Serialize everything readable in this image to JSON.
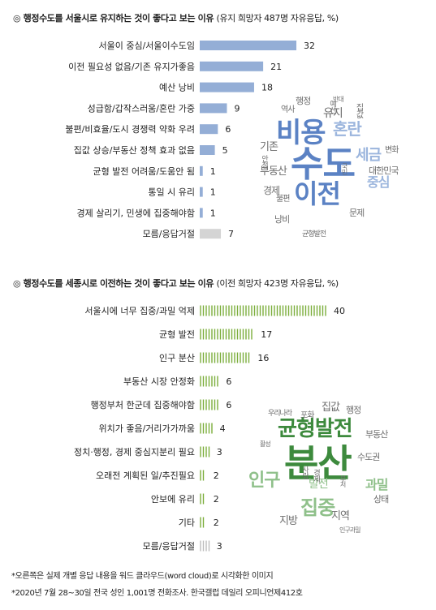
{
  "chart_data": [
    {
      "type": "bar",
      "title": "◎ 행정수도를 서울시로 유지하는 것이 좋다고 보는 이유",
      "subtitle": "(유지 희망자 487명 자유응답, %)",
      "categories": [
        "서울이 중심/서울이수도임",
        "이전 필요성 없음/기존 유지가좋음",
        "예산 낭비",
        "성급함/갑작스러움/혼란 가중",
        "불편/비효율/도시 경쟁력 약화 우려",
        "집값 상승/부동산 정책 효과 없음",
        "균형 발전 어려움/도움안 됨",
        "통일 시 유리",
        "경제 살리기, 민생에 집중해야함",
        "모름/응답거절"
      ],
      "values": [
        32,
        21,
        18,
        9,
        6,
        5,
        1,
        1,
        1,
        7
      ],
      "highlight_last": true,
      "colors": {
        "bar": "#94aed6",
        "last": "#d4d4d4"
      },
      "xlim": [
        0,
        40
      ]
    },
    {
      "type": "bar",
      "title": "◎ 행정수도를 세종시로 이전하는 것이 좋다고 보는 이유",
      "subtitle": "(이전 희망자 423명 자유응답, %)",
      "categories": [
        "서울시에 너무 집중/과밀 억제",
        "균형 발전",
        "인구 분산",
        "부동산 시장 안정화",
        "행정부처 한군데 집중해야함",
        "위치가 좋음/거리가가까움",
        "정치·행정, 경제 중심지분리 필요",
        "오래전 계획된 일/추진필요",
        "안보에 유리",
        "기타",
        "모름/응답거절"
      ],
      "values": [
        40,
        17,
        16,
        6,
        6,
        4,
        3,
        2,
        2,
        2,
        3
      ],
      "highlight_last": true,
      "colors": {
        "bar": "#7cae3c",
        "last": "#bcbcbc"
      },
      "xlim": [
        0,
        40
      ]
    }
  ],
  "wordcloud1": {
    "color_main": "#5b82c4",
    "color_light": "#9bb5dd",
    "color_gray": "#6e6e6e",
    "words": [
      {
        "text": "비용",
        "size": 34,
        "tone": "main"
      },
      {
        "text": "수도",
        "size": 44,
        "tone": "main"
      },
      {
        "text": "이전",
        "size": 32,
        "tone": "main"
      },
      {
        "text": "혼란",
        "size": 20,
        "tone": "light"
      },
      {
        "text": "세금",
        "size": 18,
        "tone": "light"
      },
      {
        "text": "중심",
        "size": 16,
        "tone": "light"
      },
      {
        "text": "유지",
        "size": 14,
        "tone": "gray"
      },
      {
        "text": "행정",
        "size": 11,
        "tone": "gray"
      },
      {
        "text": "역사",
        "size": 10,
        "tone": "gray"
      },
      {
        "text": "집값",
        "size": 10,
        "tone": "gray"
      },
      {
        "text": "반대",
        "size": 8,
        "tone": "gray"
      },
      {
        "text": "기존",
        "size": 13,
        "tone": "gray"
      },
      {
        "text": "부동산",
        "size": 13,
        "tone": "gray"
      },
      {
        "text": "경제",
        "size": 12,
        "tone": "gray"
      },
      {
        "text": "안정",
        "size": 9,
        "tone": "gray"
      },
      {
        "text": "불편",
        "size": 10,
        "tone": "gray"
      },
      {
        "text": "낭비",
        "size": 11,
        "tone": "gray"
      },
      {
        "text": "변화",
        "size": 10,
        "tone": "gray"
      },
      {
        "text": "대한민국",
        "size": 11,
        "tone": "gray"
      },
      {
        "text": "국민",
        "size": 8,
        "tone": "gray"
      },
      {
        "text": "문제",
        "size": 11,
        "tone": "gray"
      },
      {
        "text": "균형발전",
        "size": 9,
        "tone": "gray"
      },
      {
        "text": "예산",
        "size": 9,
        "tone": "gray"
      }
    ]
  },
  "wordcloud2": {
    "color_main": "#3d8a3d",
    "color_light": "#8fc08a",
    "color_gray": "#6e6e6e",
    "words": [
      {
        "text": "균형발전",
        "size": 26,
        "tone": "main"
      },
      {
        "text": "분산",
        "size": 46,
        "tone": "main"
      },
      {
        "text": "인구",
        "size": 22,
        "tone": "light"
      },
      {
        "text": "집중",
        "size": 24,
        "tone": "light"
      },
      {
        "text": "과밀",
        "size": 16,
        "tone": "light"
      },
      {
        "text": "발전",
        "size": 14,
        "tone": "light"
      },
      {
        "text": "집값",
        "size": 13,
        "tone": "gray"
      },
      {
        "text": "행정",
        "size": 11,
        "tone": "gray"
      },
      {
        "text": "포화",
        "size": 10,
        "tone": "gray"
      },
      {
        "text": "우리나라",
        "size": 9,
        "tone": "gray"
      },
      {
        "text": "부동산",
        "size": 11,
        "tone": "gray"
      },
      {
        "text": "수도권",
        "size": 11,
        "tone": "gray"
      },
      {
        "text": "상태",
        "size": 11,
        "tone": "gray"
      },
      {
        "text": "지방",
        "size": 13,
        "tone": "gray"
      },
      {
        "text": "지역",
        "size": 13,
        "tone": "gray"
      },
      {
        "text": "인구과밀",
        "size": 8,
        "tone": "gray"
      },
      {
        "text": "활성",
        "size": 8,
        "tone": "gray"
      },
      {
        "text": "경제",
        "size": 9,
        "tone": "gray"
      },
      {
        "text": "사람",
        "size": 9,
        "tone": "gray"
      },
      {
        "text": "부처",
        "size": 8,
        "tone": "gray"
      }
    ]
  },
  "notes": {
    "note1": "*오른쪽은 실제 개별 응답 내용을 워드 클라우드(word cloud)로 시각화한 이미지",
    "note2": "*2020년 7월 28~30일 전국 성인 1,001명 전화조사. 한국갤럽 데일리 오피니언제412호"
  }
}
